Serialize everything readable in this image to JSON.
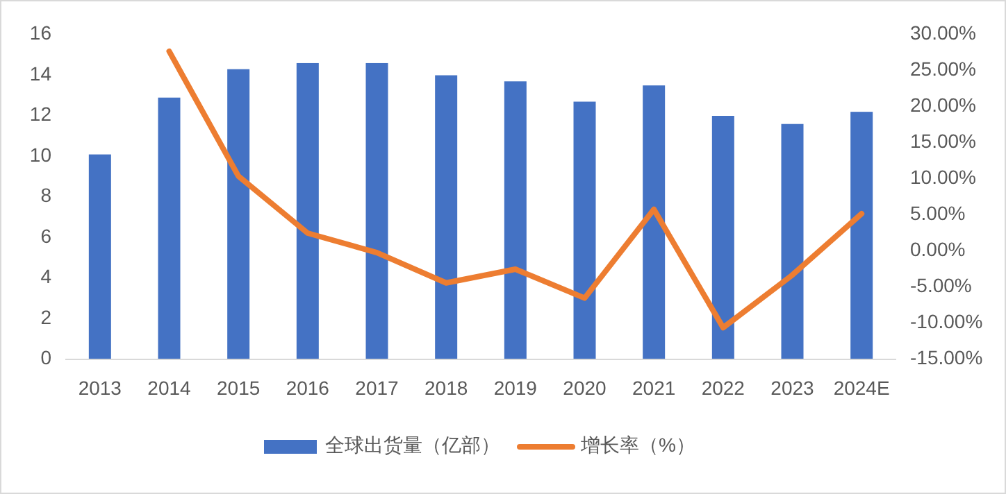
{
  "chart_data": {
    "type": "bar",
    "categories": [
      "2013",
      "2014",
      "2015",
      "2016",
      "2017",
      "2018",
      "2019",
      "2020",
      "2021",
      "2022",
      "2023",
      "2024E"
    ],
    "series": [
      {
        "name": "全球出货量（亿部）",
        "color": "#4472c4",
        "values": [
          10.1,
          12.9,
          14.3,
          14.6,
          14.6,
          14.0,
          13.7,
          12.7,
          13.5,
          12.0,
          11.6,
          12.2
        ]
      },
      {
        "name": "增长率（%）",
        "type": "line",
        "axis": "y2",
        "color": "#ed7d31",
        "values": [
          null,
          27.7,
          10.4,
          2.5,
          -0.2,
          -4.4,
          -2.5,
          -6.5,
          5.8,
          -10.6,
          -3.3,
          5.2
        ]
      }
    ],
    "ylim": [
      0,
      16
    ],
    "yticks": [
      0,
      2,
      4,
      6,
      8,
      10,
      12,
      14,
      16
    ],
    "y2lim": [
      -15,
      30
    ],
    "y2ticks": [
      {
        "value": -15,
        "label": "-15.00%"
      },
      {
        "value": -10,
        "label": "-10.00%"
      },
      {
        "value": -5,
        "label": "-5.00%"
      },
      {
        "value": 0,
        "label": "0.00%"
      },
      {
        "value": 5,
        "label": "5.00%"
      },
      {
        "value": 10,
        "label": "10.00%"
      },
      {
        "value": 15,
        "label": "15.00%"
      },
      {
        "value": 20,
        "label": "20.00%"
      },
      {
        "value": 25,
        "label": "25.00%"
      },
      {
        "value": 30,
        "label": "30.00%"
      }
    ],
    "legend": "bottom",
    "grid": false,
    "marker": "none",
    "line_style": "solid"
  }
}
